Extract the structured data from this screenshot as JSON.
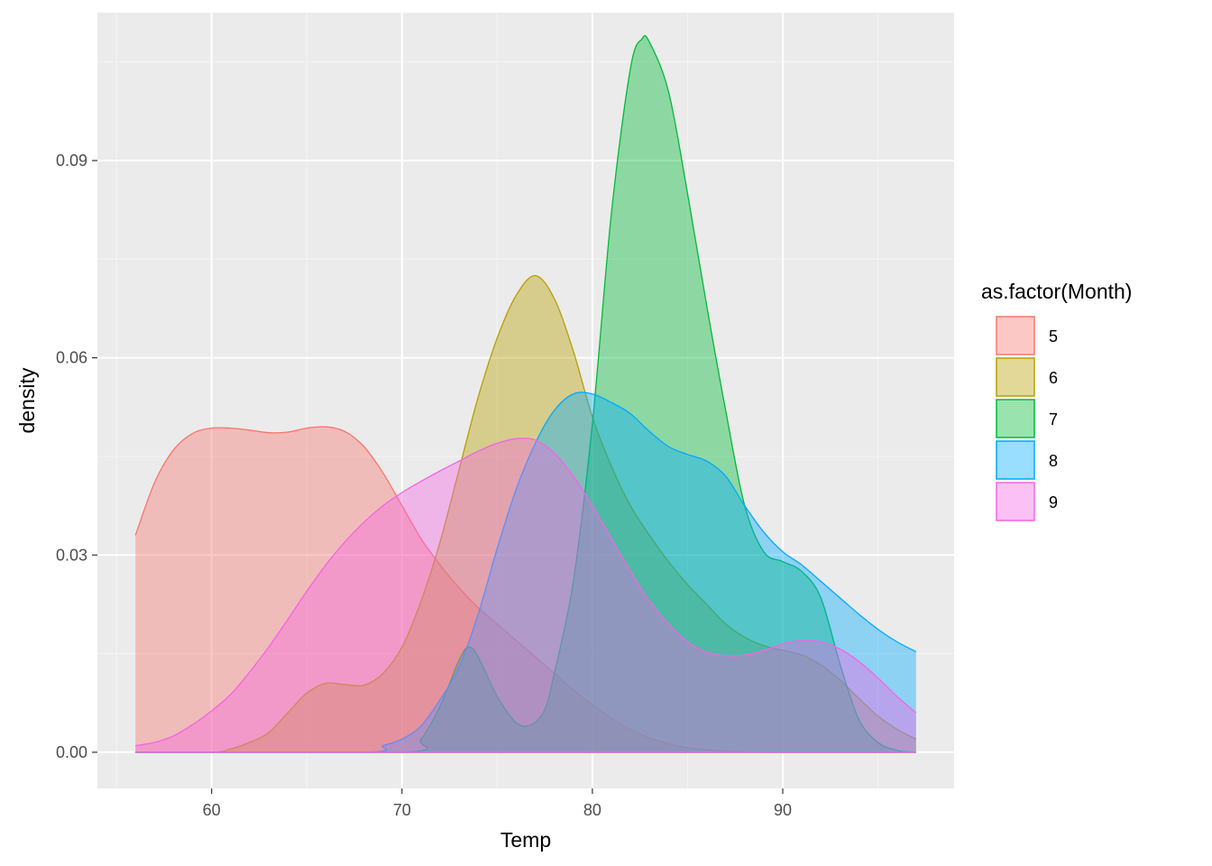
{
  "chart_data": {
    "type": "area",
    "subtype": "density",
    "xlabel": "Temp",
    "ylabel": "density",
    "xlim": [
      54.0,
      99.0
    ],
    "ylim": [
      -0.0055,
      0.1125
    ],
    "x_ticks": [
      60,
      70,
      80,
      90
    ],
    "x_tick_labels": [
      "60",
      "70",
      "80",
      "90"
    ],
    "y_ticks": [
      0.0,
      0.03,
      0.06,
      0.09
    ],
    "y_tick_labels": [
      "0.00",
      "0.03",
      "0.06",
      "0.09"
    ],
    "grid": true,
    "legend": {
      "title": "as.factor(Month)",
      "position": "right"
    },
    "series": [
      {
        "name": "5",
        "color": "#F8766D",
        "points": [
          [
            56,
            0.033
          ],
          [
            57,
            0.041
          ],
          [
            58,
            0.046
          ],
          [
            59,
            0.0485
          ],
          [
            60,
            0.0493
          ],
          [
            61,
            0.0493
          ],
          [
            62,
            0.049
          ],
          [
            63,
            0.0486
          ],
          [
            64,
            0.0487
          ],
          [
            65,
            0.0493
          ],
          [
            66,
            0.0495
          ],
          [
            67,
            0.0488
          ],
          [
            68,
            0.0465
          ],
          [
            69,
            0.0425
          ],
          [
            70,
            0.0375
          ],
          [
            71,
            0.0325
          ],
          [
            72,
            0.0285
          ],
          [
            73,
            0.025
          ],
          [
            74,
            0.022
          ],
          [
            75,
            0.0195
          ],
          [
            76,
            0.017
          ],
          [
            77,
            0.0145
          ],
          [
            78,
            0.012
          ],
          [
            79,
            0.0095
          ],
          [
            80,
            0.0072
          ],
          [
            81,
            0.0052
          ],
          [
            82,
            0.0035
          ],
          [
            83,
            0.0022
          ],
          [
            84,
            0.0013
          ],
          [
            85,
            0.0007
          ],
          [
            86,
            0.0004
          ],
          [
            87,
            0.0002
          ],
          [
            88,
            0.0001
          ],
          [
            89,
            5e-05
          ],
          [
            90,
            0.0
          ],
          [
            97,
            0.0
          ]
        ]
      },
      {
        "name": "6",
        "color": "#B79F00",
        "points": [
          [
            56,
            0.0
          ],
          [
            60,
            0.0
          ],
          [
            61,
            0.0005
          ],
          [
            62,
            0.0015
          ],
          [
            63,
            0.003
          ],
          [
            64,
            0.006
          ],
          [
            65,
            0.009
          ],
          [
            66,
            0.0105
          ],
          [
            67,
            0.0103
          ],
          [
            68,
            0.0102
          ],
          [
            69,
            0.012
          ],
          [
            70,
            0.016
          ],
          [
            71,
            0.023
          ],
          [
            72,
            0.032
          ],
          [
            73,
            0.043
          ],
          [
            74,
            0.054
          ],
          [
            75,
            0.063
          ],
          [
            76,
            0.0695
          ],
          [
            77,
            0.0725
          ],
          [
            78,
            0.069
          ],
          [
            79,
            0.061
          ],
          [
            80,
            0.051
          ],
          [
            81,
            0.0435
          ],
          [
            82,
            0.0375
          ],
          [
            83,
            0.033
          ],
          [
            84,
            0.029
          ],
          [
            85,
            0.0255
          ],
          [
            86,
            0.0225
          ],
          [
            87,
            0.0195
          ],
          [
            88,
            0.0175
          ],
          [
            89,
            0.0162
          ],
          [
            90,
            0.0155
          ],
          [
            91,
            0.0148
          ],
          [
            92,
            0.0133
          ],
          [
            93,
            0.011
          ],
          [
            94,
            0.0082
          ],
          [
            95,
            0.0055
          ],
          [
            96,
            0.0035
          ],
          [
            97,
            0.002
          ]
        ]
      },
      {
        "name": "7",
        "color": "#00BA38",
        "points": [
          [
            56,
            0.0
          ],
          [
            70,
            0.0
          ],
          [
            71,
            0.002
          ],
          [
            72,
            0.007
          ],
          [
            73,
            0.014
          ],
          [
            73.5,
            0.016
          ],
          [
            74,
            0.0145
          ],
          [
            75,
            0.0085
          ],
          [
            76,
            0.0045
          ],
          [
            76.8,
            0.0042
          ],
          [
            77.5,
            0.0065
          ],
          [
            78,
            0.012
          ],
          [
            79,
            0.026
          ],
          [
            80,
            0.05
          ],
          [
            81,
            0.082
          ],
          [
            82,
            0.104
          ],
          [
            82.6,
            0.1085
          ],
          [
            83,
            0.108
          ],
          [
            84,
            0.1005
          ],
          [
            85,
            0.085
          ],
          [
            86,
            0.068
          ],
          [
            87,
            0.052
          ],
          [
            88,
            0.0375
          ],
          [
            89,
            0.0305
          ],
          [
            90,
            0.029
          ],
          [
            91,
            0.0275
          ],
          [
            92,
            0.0235
          ],
          [
            93,
            0.0135
          ],
          [
            94,
            0.005
          ],
          [
            95,
            0.0015
          ],
          [
            96,
            0.0003
          ],
          [
            97,
            0.0
          ]
        ]
      },
      {
        "name": "8",
        "color": "#00A9FF",
        "points": [
          [
            56,
            0.0
          ],
          [
            68,
            0.0
          ],
          [
            69,
            0.001
          ],
          [
            70,
            0.002
          ],
          [
            71,
            0.004
          ],
          [
            72,
            0.008
          ],
          [
            73,
            0.013
          ],
          [
            74,
            0.021
          ],
          [
            75,
            0.031
          ],
          [
            76,
            0.04
          ],
          [
            77,
            0.047
          ],
          [
            78,
            0.052
          ],
          [
            79,
            0.0545
          ],
          [
            80,
            0.0545
          ],
          [
            81,
            0.0532
          ],
          [
            82,
            0.0515
          ],
          [
            83,
            0.0488
          ],
          [
            84,
            0.0465
          ],
          [
            85,
            0.0453
          ],
          [
            86,
            0.0443
          ],
          [
            87,
            0.042
          ],
          [
            88,
            0.0375
          ],
          [
            89,
            0.0335
          ],
          [
            90,
            0.0305
          ],
          [
            91,
            0.0285
          ],
          [
            92,
            0.026
          ],
          [
            93,
            0.0235
          ],
          [
            94,
            0.021
          ],
          [
            95,
            0.0187
          ],
          [
            96,
            0.0168
          ],
          [
            97,
            0.0153
          ]
        ]
      },
      {
        "name": "9",
        "color": "#F564E3",
        "points": [
          [
            56,
            0.001
          ],
          [
            57,
            0.0015
          ],
          [
            58,
            0.0025
          ],
          [
            59,
            0.0042
          ],
          [
            60,
            0.0063
          ],
          [
            61,
            0.0088
          ],
          [
            62,
            0.0122
          ],
          [
            63,
            0.016
          ],
          [
            64,
            0.0202
          ],
          [
            65,
            0.0245
          ],
          [
            66,
            0.0285
          ],
          [
            67,
            0.032
          ],
          [
            68,
            0.035
          ],
          [
            69,
            0.0375
          ],
          [
            70,
            0.0395
          ],
          [
            71,
            0.0412
          ],
          [
            72,
            0.0428
          ],
          [
            73,
            0.0443
          ],
          [
            74,
            0.0458
          ],
          [
            75,
            0.047
          ],
          [
            76,
            0.0477
          ],
          [
            77,
            0.0475
          ],
          [
            78,
            0.0455
          ],
          [
            79,
            0.042
          ],
          [
            80,
            0.0375
          ],
          [
            81,
            0.0325
          ],
          [
            82,
            0.0275
          ],
          [
            83,
            0.023
          ],
          [
            84,
            0.0195
          ],
          [
            85,
            0.0168
          ],
          [
            86,
            0.0152
          ],
          [
            87,
            0.0147
          ],
          [
            88,
            0.0148
          ],
          [
            89,
            0.0155
          ],
          [
            90,
            0.0165
          ],
          [
            91,
            0.017
          ],
          [
            92,
            0.0168
          ],
          [
            93,
            0.0157
          ],
          [
            94,
            0.0138
          ],
          [
            95,
            0.0113
          ],
          [
            96,
            0.0085
          ],
          [
            97,
            0.006
          ]
        ]
      }
    ]
  }
}
